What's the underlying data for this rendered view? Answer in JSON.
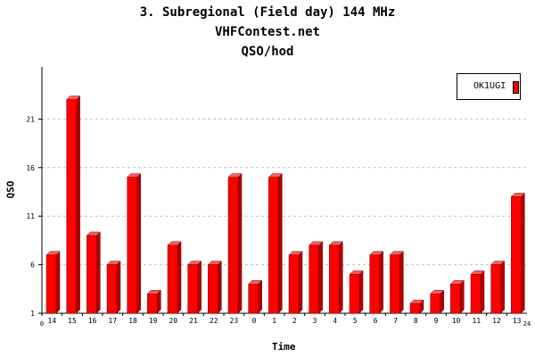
{
  "header": {
    "line1": "3. Subregional (Field day) 144 MHz",
    "line2": "VHFContest.net",
    "line3": "QSO/hod"
  },
  "colors": {
    "bar_front": "#ff0000",
    "bar_side": "#b00000",
    "bar_top": "#ff5a5a",
    "grid": "#c0c0c0"
  },
  "chart_data": {
    "type": "bar",
    "categories": [
      "14",
      "15",
      "16",
      "17",
      "18",
      "19",
      "20",
      "21",
      "22",
      "23",
      "0",
      "1",
      "2",
      "3",
      "4",
      "5",
      "6",
      "7",
      "8",
      "9",
      "10",
      "11",
      "12",
      "13"
    ],
    "series": [
      {
        "name": "OK1UGI",
        "values": [
          7,
          23,
          9,
          6,
          15,
          3,
          8,
          6,
          6,
          15,
          4,
          15,
          7,
          8,
          8,
          5,
          7,
          7,
          2,
          3,
          4,
          5,
          6,
          13
        ]
      }
    ],
    "xlabel": "Time",
    "ylabel": "QSO",
    "y_ticks": [
      "1",
      "6",
      "11",
      "16",
      "21"
    ],
    "x_edge_ticks": [
      "0",
      "24"
    ],
    "ylim": [
      1,
      26
    ],
    "grid": "horizontal dashed",
    "legend": "top-right"
  }
}
